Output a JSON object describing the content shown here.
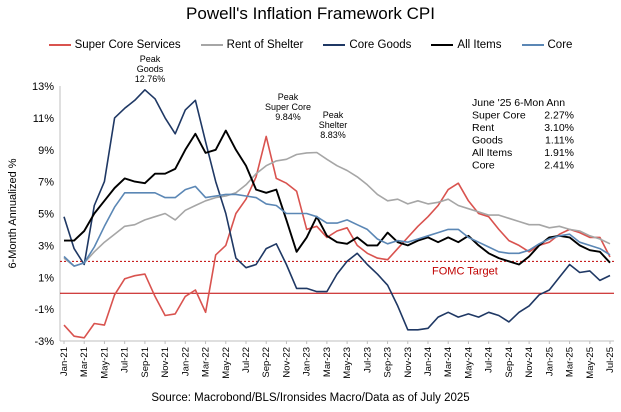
{
  "chart_data": {
    "type": "line",
    "title": "Powell's Inflation Framework CPI",
    "ylabel": "6-Month Annualized %",
    "xlabel": "",
    "ylim": [
      -3,
      13
    ],
    "yticks": [
      "-3%",
      "-1%",
      "1%",
      "3%",
      "5%",
      "7%",
      "9%",
      "11%",
      "13%"
    ],
    "ytick_values": [
      -3,
      -1,
      1,
      3,
      5,
      7,
      9,
      11,
      13
    ],
    "x_tick_labels": [
      "Jan-21",
      "Mar-21",
      "May-21",
      "Jul-21",
      "Sep-21",
      "Nov-21",
      "Jan-22",
      "Mar-22",
      "May-22",
      "Jul-22",
      "Sep-22",
      "Nov-22",
      "Jan-23",
      "Mar-23",
      "May-23",
      "Jul-23",
      "Sep-23",
      "Nov-23",
      "Jan-24",
      "Mar-24",
      "May-24",
      "Jul-24",
      "Sep-24",
      "Nov-24",
      "Jan-25",
      "Mar-25",
      "May-25",
      "Jul-25"
    ],
    "x_months": [
      "Jan-21",
      "Feb-21",
      "Mar-21",
      "Apr-21",
      "May-21",
      "Jun-21",
      "Jul-21",
      "Aug-21",
      "Sep-21",
      "Oct-21",
      "Nov-21",
      "Dec-21",
      "Jan-22",
      "Feb-22",
      "Mar-22",
      "Apr-22",
      "May-22",
      "Jun-22",
      "Jul-22",
      "Aug-22",
      "Sep-22",
      "Oct-22",
      "Nov-22",
      "Dec-22",
      "Jan-23",
      "Feb-23",
      "Mar-23",
      "Apr-23",
      "May-23",
      "Jun-23",
      "Jul-23",
      "Aug-23",
      "Sep-23",
      "Oct-23",
      "Nov-23",
      "Dec-23",
      "Jan-24",
      "Feb-24",
      "Mar-24",
      "Apr-24",
      "May-24",
      "Jun-24",
      "Jul-24",
      "Aug-24",
      "Sep-24",
      "Oct-24",
      "Nov-24",
      "Dec-24",
      "Jan-25",
      "Feb-25",
      "Mar-25",
      "Apr-25",
      "May-25",
      "Jun-25",
      "Jul-25"
    ],
    "series": [
      {
        "name": "Super Core Services",
        "color": "#d9534f",
        "values": [
          -2.0,
          -2.7,
          -2.8,
          -1.9,
          -2.0,
          -0.1,
          0.9,
          1.1,
          1.2,
          -0.2,
          -1.4,
          -1.3,
          -0.2,
          0.2,
          -1.2,
          2.4,
          3.0,
          5.0,
          5.9,
          7.3,
          9.84,
          7.2,
          6.9,
          6.4,
          4.0,
          4.2,
          3.5,
          3.9,
          4.1,
          3.0,
          2.5,
          2.2,
          2.1,
          2.8,
          3.5,
          4.2,
          4.8,
          5.5,
          6.5,
          6.9,
          5.8,
          5.0,
          4.8,
          4.0,
          3.3,
          3.0,
          2.6,
          3.0,
          3.2,
          3.7,
          4.0,
          3.8,
          3.5,
          3.5,
          2.27
        ]
      },
      {
        "name": "Rent of Shelter",
        "color": "#a6a6a6",
        "values": [
          2.2,
          1.7,
          1.9,
          2.6,
          3.2,
          3.7,
          4.2,
          4.3,
          4.6,
          4.8,
          5.0,
          4.6,
          5.2,
          5.5,
          5.8,
          6.0,
          6.1,
          6.3,
          6.8,
          7.5,
          8.0,
          8.3,
          8.4,
          8.7,
          8.8,
          8.83,
          8.4,
          8.0,
          7.7,
          7.3,
          6.8,
          6.2,
          5.8,
          5.9,
          5.6,
          5.8,
          5.6,
          5.7,
          5.9,
          5.5,
          5.3,
          5.1,
          4.9,
          4.9,
          4.7,
          4.5,
          4.3,
          4.3,
          4.1,
          4.2,
          4.0,
          3.9,
          3.6,
          3.4,
          3.1
        ]
      },
      {
        "name": "Core Goods",
        "color": "#1f3864",
        "values": [
          4.8,
          2.8,
          1.8,
          5.5,
          7.0,
          11.0,
          11.6,
          12.1,
          12.76,
          12.2,
          11.0,
          10.0,
          11.5,
          12.1,
          9.5,
          7.0,
          5.0,
          2.2,
          1.6,
          1.8,
          2.8,
          3.1,
          1.8,
          0.3,
          0.3,
          0.1,
          0.1,
          1.2,
          2.0,
          2.5,
          1.8,
          1.2,
          0.5,
          -0.8,
          -2.3,
          -2.3,
          -2.2,
          -1.5,
          -1.2,
          -1.5,
          -1.3,
          -1.5,
          -1.2,
          -1.4,
          -1.8,
          -1.2,
          -0.8,
          -0.1,
          0.2,
          1.0,
          1.8,
          1.3,
          1.4,
          0.8,
          1.11
        ]
      },
      {
        "name": "All Items",
        "color": "#000000",
        "values": [
          3.3,
          3.3,
          3.9,
          5.0,
          5.8,
          6.6,
          7.2,
          7.0,
          6.9,
          7.5,
          7.5,
          7.8,
          9.0,
          10.0,
          8.8,
          9.0,
          10.2,
          9.0,
          8.0,
          6.5,
          6.3,
          6.5,
          4.6,
          2.6,
          3.5,
          4.8,
          3.6,
          3.2,
          3.1,
          3.5,
          3.0,
          3.0,
          3.8,
          3.2,
          3.0,
          3.3,
          3.5,
          3.2,
          3.5,
          3.2,
          3.6,
          3.0,
          2.5,
          2.2,
          2.0,
          1.8,
          2.3,
          3.0,
          3.5,
          3.6,
          3.5,
          3.0,
          2.7,
          2.6,
          1.91
        ]
      },
      {
        "name": "Core",
        "color": "#5b87b5",
        "values": [
          2.3,
          1.7,
          1.9,
          2.9,
          4.2,
          5.4,
          6.3,
          6.3,
          6.3,
          6.3,
          6.0,
          6.0,
          6.5,
          6.7,
          6.0,
          6.1,
          6.2,
          6.2,
          6.1,
          6.0,
          5.6,
          5.5,
          5.0,
          5.0,
          5.0,
          4.8,
          4.4,
          4.4,
          4.6,
          4.3,
          4.0,
          3.4,
          3.1,
          3.3,
          3.2,
          3.4,
          3.6,
          3.8,
          4.0,
          4.0,
          3.5,
          3.2,
          2.9,
          2.6,
          2.5,
          2.5,
          2.7,
          3.1,
          3.4,
          3.6,
          3.7,
          3.2,
          3.0,
          2.8,
          2.41
        ]
      }
    ],
    "reference_lines": [
      {
        "name": "FOMC Target",
        "value": 2.0,
        "style": "dotted",
        "color": "#c00000"
      },
      {
        "name": "Zero line",
        "value": 0.0,
        "style": "solid",
        "color": "#c00000"
      }
    ],
    "annotations": [
      {
        "lines": [
          "Peak",
          "Goods",
          "12.76%"
        ],
        "x_month": "Sep-21"
      },
      {
        "lines": [
          "Peak",
          "Super Core",
          "9.84%"
        ],
        "x_month": "Sep-22"
      },
      {
        "lines": [
          "Peak",
          "Shelter",
          "8.83%"
        ],
        "x_month": "Feb-23"
      }
    ],
    "fomc_label": "FOMC Target",
    "summary_box": {
      "header": "June '25 6-Mon Ann",
      "rows": [
        {
          "label": "Super Core",
          "value": "2.27%"
        },
        {
          "label": "Rent",
          "value": "3.10%"
        },
        {
          "label": "Goods",
          "value": "1.11%"
        },
        {
          "label": "All Items",
          "value": "1.91%"
        },
        {
          "label": "Core",
          "value": "2.41%"
        }
      ]
    },
    "source": "Source: Macrobond/BLS/Ironsides Macro/Data as of July 2025"
  }
}
